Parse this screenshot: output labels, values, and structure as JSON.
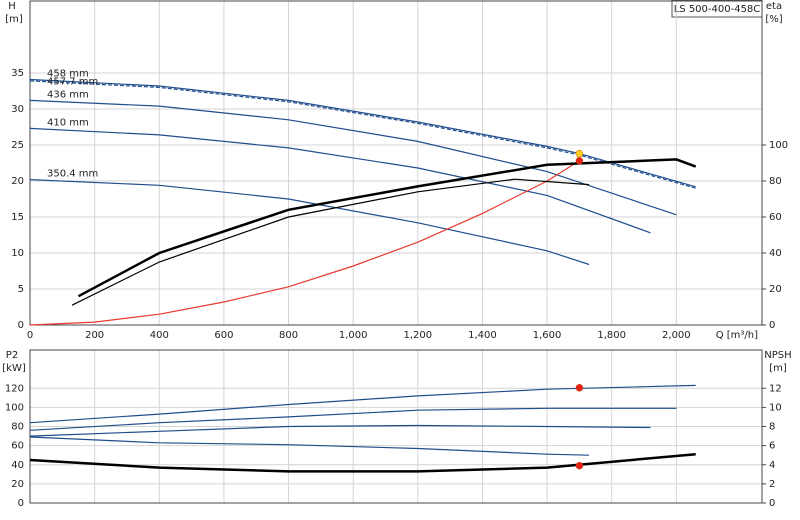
{
  "chart_data": [
    {
      "type": "line",
      "annotation": "LS 500-400-458C",
      "ylabel": "H",
      "yunit": "[m]",
      "y2label": "eta",
      "y2unit": "[%]",
      "xlabel": "Q [m³/h]",
      "xlim": [
        0,
        2265
      ],
      "ylim": [
        0,
        45
      ],
      "y2lim": [
        0,
        180
      ],
      "grid": true,
      "xticks": [
        0,
        200,
        400,
        600,
        800,
        {
          "value": 1000,
          "label": "1,000"
        },
        {
          "value": 1200,
          "label": "1,200"
        },
        {
          "value": 1400,
          "label": "1,400"
        },
        {
          "value": 1600,
          "label": "1,600"
        },
        {
          "value": 1800,
          "label": "1,800"
        },
        {
          "value": 2000,
          "label": "2,000"
        }
      ],
      "yticks": [
        0,
        5,
        10,
        15,
        20,
        25,
        30,
        35
      ],
      "y2ticks": [
        0,
        20,
        40,
        60,
        80,
        100
      ],
      "series": [
        {
          "name": "458 mm",
          "color": "#1f4e8c",
          "x": [
            0,
            400,
            800,
            1200,
            1600,
            1700,
            2060
          ],
          "values": [
            34.1,
            33.2,
            31.2,
            28.2,
            24.8,
            23.8,
            19.2
          ]
        },
        {
          "name": "457.7 mm",
          "color": "#1f4e8c",
          "dashed": true,
          "x": [
            0,
            400,
            800,
            1200,
            1600,
            1700,
            2060
          ],
          "values": [
            33.9,
            33.0,
            31.0,
            28.0,
            24.6,
            23.6,
            19.0
          ]
        },
        {
          "name": "436 mm",
          "color": "#1f4e8c",
          "x": [
            0,
            400,
            800,
            1200,
            1600,
            2000
          ],
          "values": [
            31.2,
            30.4,
            28.5,
            25.5,
            21.3,
            15.3
          ]
        },
        {
          "name": "410 mm",
          "color": "#1f4e8c",
          "x": [
            0,
            400,
            800,
            1200,
            1600,
            1920
          ],
          "values": [
            27.3,
            26.4,
            24.6,
            21.8,
            18.0,
            12.8
          ]
        },
        {
          "name": "350.4 mm",
          "color": "#1f4e8c",
          "x": [
            0,
            400,
            800,
            1200,
            1600,
            1730
          ],
          "values": [
            20.2,
            19.4,
            17.5,
            14.2,
            10.3,
            8.4
          ]
        },
        {
          "color": "#e8392f",
          "x": [
            0,
            200,
            400,
            600,
            800,
            1000,
            1200,
            1400,
            1600,
            1700
          ],
          "values": [
            0,
            0.4,
            1.5,
            3.2,
            5.3,
            8.2,
            11.5,
            15.5,
            20.0,
            22.8
          ]
        },
        {
          "color": "#000000",
          "width": 2.5,
          "axis": "y2",
          "x": [
            150,
            400,
            800,
            1200,
            1600,
            2000,
            2060
          ],
          "values": [
            16,
            40,
            64,
            77,
            89,
            92,
            88
          ]
        },
        {
          "color": "#000000",
          "axis": "y2",
          "x": [
            130,
            400,
            800,
            1200,
            1500,
            1730
          ],
          "values": [
            11,
            35,
            60,
            74,
            81,
            78
          ]
        },
        {
          "color": "#ffd21f",
          "marker": true,
          "x": [
            1700
          ],
          "values": [
            23.8
          ]
        },
        {
          "color": "#e8201a",
          "marker": true,
          "x": [
            1700
          ],
          "values": [
            22.8
          ]
        }
      ]
    },
    {
      "type": "line",
      "ylabel": "P2",
      "yunit": "[kW]",
      "y2label": "NPSH",
      "y2unit": "[m]",
      "xlim": [
        0,
        2265
      ],
      "ylim": [
        0,
        160
      ],
      "y2lim": [
        0,
        16
      ],
      "grid": true,
      "yticks": [
        0,
        20,
        40,
        60,
        80,
        100,
        120
      ],
      "y2ticks": [
        0,
        2,
        4,
        6,
        8,
        10,
        12
      ],
      "series": [
        {
          "color": "#1f4e8c",
          "x": [
            0,
            400,
            800,
            1200,
            1600,
            2060
          ],
          "values": [
            84,
            93,
            103,
            112,
            119,
            123
          ]
        },
        {
          "color": "#1f4e8c",
          "x": [
            0,
            400,
            800,
            1200,
            1600,
            2000
          ],
          "values": [
            76,
            84,
            90,
            97,
            99,
            99
          ]
        },
        {
          "color": "#1f4e8c",
          "x": [
            0,
            400,
            800,
            1200,
            1600,
            1920
          ],
          "values": [
            70,
            75,
            80,
            81,
            80,
            79
          ]
        },
        {
          "color": "#1f4e8c",
          "x": [
            0,
            400,
            800,
            1200,
            1600,
            1730
          ],
          "values": [
            69,
            63,
            61,
            57,
            51,
            50
          ]
        },
        {
          "color": "#000000",
          "width": 2.5,
          "axis": "y2",
          "x": [
            0,
            400,
            800,
            1200,
            1600,
            2060
          ],
          "values": [
            4.5,
            3.7,
            3.3,
            3.3,
            3.7,
            5.1
          ]
        },
        {
          "color": "#e8201a",
          "marker": true,
          "x": [
            1700
          ],
          "values": [
            120.5
          ]
        },
        {
          "color": "#e8201a",
          "marker": true,
          "axis": "y2",
          "x": [
            1700
          ],
          "values": [
            3.9
          ]
        }
      ]
    }
  ]
}
